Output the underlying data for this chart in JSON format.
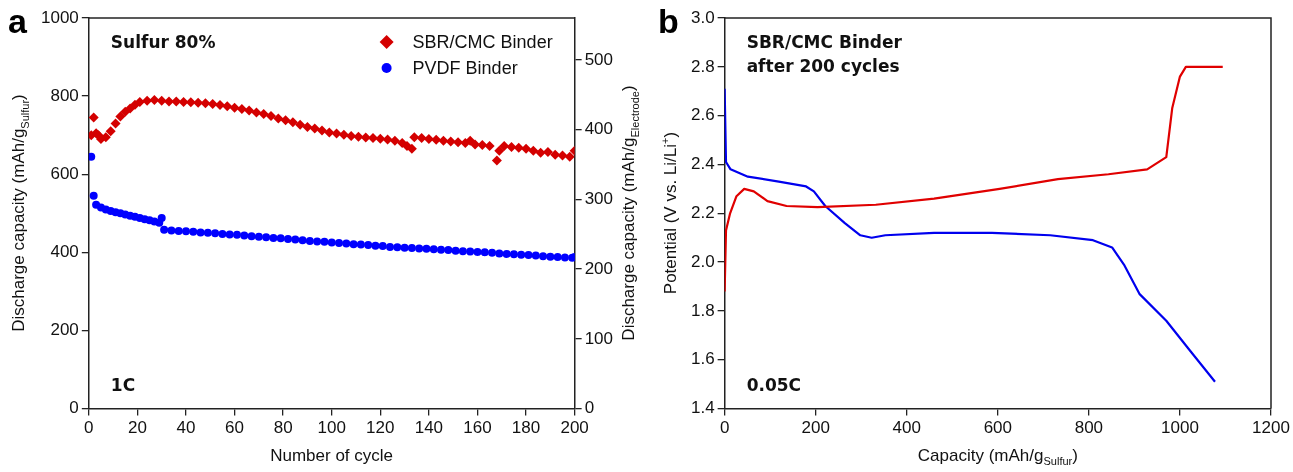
{
  "chart_data": [
    {
      "type": "scatter",
      "title": "a",
      "xlabel": "Number of cycle",
      "ylabel": "Discharge capacity (mAh/g$_{Sulfur}$)",
      "y2label": "Discharge capacity (mAh/g$_{Electrode}$)",
      "xlim": [
        0,
        200
      ],
      "xticks": [
        0,
        20,
        40,
        60,
        80,
        100,
        120,
        140,
        160,
        180,
        200
      ],
      "ylim": [
        0,
        1000
      ],
      "yticks": [
        0,
        200,
        400,
        600,
        800,
        1000
      ],
      "y2lim": [
        0,
        560
      ],
      "y2ticks": [
        0,
        100,
        200,
        300,
        400,
        500
      ],
      "grid": false,
      "legend": "top right",
      "annotations": [
        "Sulfur 80%",
        "1C"
      ],
      "series": [
        {
          "name": "SBR/CMC Binder",
          "color": "#d40000",
          "marker": "diamond",
          "x": [
            1,
            2,
            3,
            4,
            5,
            7,
            9,
            11,
            13,
            15,
            17,
            19,
            21,
            24,
            27,
            30,
            33,
            36,
            39,
            42,
            45,
            48,
            51,
            54,
            57,
            60,
            63,
            66,
            69,
            72,
            75,
            78,
            81,
            84,
            87,
            90,
            93,
            96,
            99,
            102,
            105,
            108,
            111,
            114,
            117,
            120,
            123,
            126,
            129,
            131,
            133,
            134,
            137,
            140,
            143,
            146,
            149,
            152,
            155,
            157,
            159,
            162,
            165,
            168,
            169,
            171,
            174,
            177,
            180,
            183,
            186,
            189,
            192,
            195,
            198,
            200
          ],
          "values": [
            700,
            745,
            705,
            700,
            690,
            695,
            710,
            730,
            748,
            760,
            768,
            778,
            785,
            788,
            790,
            788,
            786,
            786,
            785,
            784,
            783,
            782,
            780,
            777,
            774,
            770,
            767,
            763,
            758,
            754,
            749,
            743,
            738,
            733,
            727,
            721,
            717,
            712,
            707,
            704,
            701,
            698,
            696,
            694,
            693,
            691,
            689,
            686,
            680,
            672,
            665,
            695,
            693,
            690,
            688,
            686,
            684,
            682,
            680,
            686,
            676,
            675,
            672,
            635,
            660,
            672,
            670,
            668,
            665,
            660,
            655,
            657,
            650,
            648,
            645,
            660
          ]
        },
        {
          "name": "PVDF Binder",
          "color": "#0000ff",
          "marker": "circle",
          "x": [
            1,
            2,
            3,
            5,
            7,
            9,
            11,
            13,
            15,
            17,
            19,
            21,
            23,
            25,
            27,
            29,
            30,
            31,
            34,
            37,
            40,
            43,
            46,
            49,
            52,
            55,
            58,
            61,
            64,
            67,
            70,
            73,
            76,
            79,
            82,
            85,
            88,
            91,
            94,
            97,
            100,
            103,
            106,
            109,
            112,
            115,
            118,
            121,
            124,
            127,
            130,
            133,
            136,
            139,
            142,
            145,
            148,
            151,
            154,
            157,
            160,
            163,
            166,
            169,
            172,
            175,
            178,
            181,
            184,
            187,
            190,
            193,
            196,
            199,
            200
          ],
          "values": [
            645,
            545,
            522,
            515,
            510,
            506,
            503,
            500,
            497,
            494,
            491,
            488,
            485,
            482,
            479,
            476,
            488,
            458,
            456,
            455,
            454,
            453,
            451,
            450,
            449,
            447,
            446,
            445,
            443,
            441,
            440,
            439,
            437,
            436,
            434,
            433,
            431,
            429,
            428,
            427,
            425,
            424,
            423,
            421,
            420,
            419,
            417,
            416,
            414,
            413,
            412,
            411,
            410,
            409,
            408,
            407,
            406,
            404,
            403,
            402,
            401,
            400,
            399,
            397,
            396,
            395,
            394,
            393,
            392,
            390,
            389,
            388,
            387,
            386,
            388
          ]
        }
      ]
    },
    {
      "type": "line",
      "title": "b",
      "xlabel": "Capacity (mAh/g$_{Sulfur}$)",
      "ylabel": "Potential (V vs. Li/Li$^{+}$)",
      "xlim": [
        0,
        1200
      ],
      "xticks": [
        0,
        200,
        400,
        600,
        800,
        1000,
        1200
      ],
      "ylim": [
        1.4,
        3.0
      ],
      "yticks": [
        1.4,
        1.6,
        1.8,
        {
          "value": 2,
          "label": "2.0"
        },
        2.2,
        2.4,
        2.6,
        2.8,
        {
          "value": 3,
          "label": "3.0"
        }
      ],
      "grid": false,
      "legend": false,
      "marker": "none",
      "line_style": "solid",
      "annotations": [
        "SBR/CMC Binder\nafter 200 cycles",
        "0.05C"
      ],
      "series": [
        {
          "color": "#e00000",
          "x": [
            0,
            3,
            12,
            26,
            43,
            64,
            94,
            136,
            204,
            332,
            460,
            604,
            732,
            843,
            928,
            970,
            983,
            1000,
            1013,
            1094
          ],
          "values": [
            1.88,
            2.13,
            2.2,
            2.27,
            2.3,
            2.29,
            2.25,
            2.23,
            2.225,
            2.235,
            2.26,
            2.3,
            2.34,
            2.36,
            2.38,
            2.43,
            2.63,
            2.76,
            2.8,
            2.8
          ]
        },
        {
          "color": "#0000ee",
          "x": [
            0,
            3,
            13,
            51,
            119,
            179,
            196,
            221,
            264,
            298,
            323,
            353,
            460,
            587,
            715,
            809,
            851,
            877,
            911,
            970,
            1021,
            1077
          ],
          "values": [
            2.71,
            2.41,
            2.38,
            2.35,
            2.33,
            2.31,
            2.29,
            2.23,
            2.16,
            2.11,
            2.1,
            2.11,
            2.12,
            2.12,
            2.11,
            2.09,
            2.06,
            1.99,
            1.87,
            1.76,
            1.64,
            1.51
          ]
        }
      ]
    }
  ]
}
